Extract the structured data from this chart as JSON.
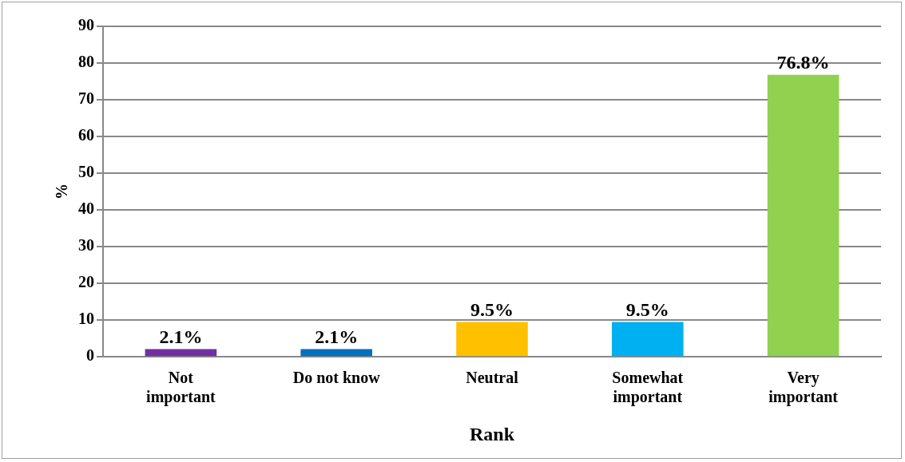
{
  "chart_data": {
    "type": "bar",
    "categories": [
      "Not important",
      "Do not know",
      "Neutral",
      "Somewhat important",
      "Very important"
    ],
    "values": [
      2.1,
      2.1,
      9.5,
      9.5,
      76.8
    ],
    "colors": [
      "#7030a0",
      "#0070c0",
      "#ffc000",
      "#00b0f0",
      "#92d050"
    ],
    "value_labels": [
      "2.1%",
      "2.1%",
      "9.5%",
      "9.5%",
      "76.8%"
    ],
    "xlabel": "Rank",
    "ylabel": "%",
    "ylim": [
      0,
      90
    ],
    "yticks": [
      0,
      10,
      20,
      30,
      40,
      50,
      60,
      70,
      80,
      90
    ],
    "grid": "y",
    "legend": false
  }
}
